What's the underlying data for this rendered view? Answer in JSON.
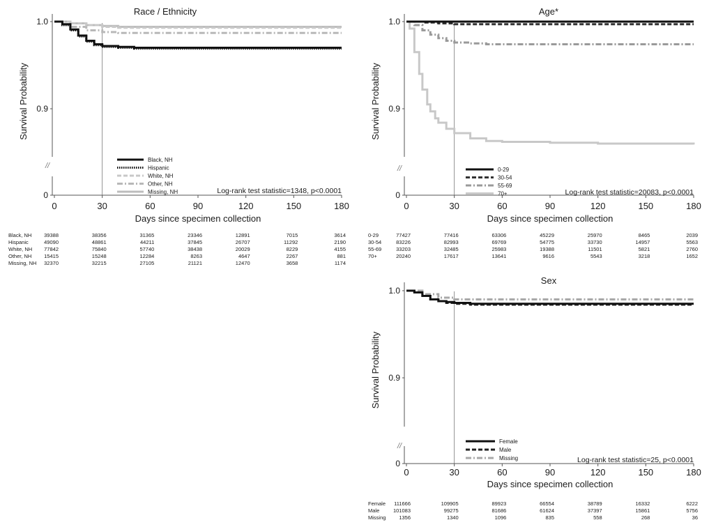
{
  "chart_data": [
    {
      "type": "line",
      "title": "Race / Ethnicity",
      "xlabel": "Days since specimen collection",
      "ylabel": "Survival Probability",
      "xlim": [
        0,
        180
      ],
      "x_ticks": [
        "0",
        "30",
        "60",
        "90",
        "120",
        "150",
        "180"
      ],
      "y_tick_labels": [
        "0",
        "0.9",
        "1.0"
      ],
      "axis_break": "//",
      "reference_line_x": 30,
      "stat_text": "Log-rank test statistic=1348, p<0.0001",
      "series": [
        {
          "name": "Black, NH",
          "style": "solid",
          "color": "#111111",
          "x": [
            0,
            5,
            10,
            15,
            20,
            25,
            30,
            40,
            50,
            60,
            90,
            120,
            150,
            180
          ],
          "values": [
            1.0,
            0.997,
            0.991,
            0.984,
            0.978,
            0.974,
            0.972,
            0.971,
            0.97,
            0.97,
            0.97,
            0.97,
            0.97,
            0.97
          ],
          "risk": [
            "39388",
            "38356",
            "31365",
            "23346",
            "12891",
            "7015",
            "3614"
          ]
        },
        {
          "name": "Hispanic",
          "style": "dotted",
          "color": "#111111",
          "x": [
            0,
            5,
            10,
            15,
            20,
            25,
            30,
            40,
            50,
            60,
            90,
            120,
            150,
            180
          ],
          "values": [
            1.0,
            0.996,
            0.99,
            0.983,
            0.977,
            0.973,
            0.971,
            0.97,
            0.969,
            0.969,
            0.969,
            0.969,
            0.969,
            0.969
          ],
          "risk": [
            "49090",
            "48861",
            "44211",
            "37845",
            "26707",
            "11292",
            "2190"
          ]
        },
        {
          "name": "White, NH",
          "style": "dashed",
          "color": "#c8c8c8",
          "x": [
            0,
            10,
            20,
            30,
            40,
            60,
            90,
            120,
            150,
            180
          ],
          "values": [
            1.0,
            0.998,
            0.996,
            0.994,
            0.993,
            0.993,
            0.993,
            0.993,
            0.993,
            0.993
          ],
          "risk": [
            "77842",
            "75840",
            "57740",
            "38438",
            "20029",
            "8229",
            "4155"
          ]
        },
        {
          "name": "Other, NH",
          "style": "dashdot",
          "color": "#b8b8b8",
          "x": [
            0,
            10,
            20,
            30,
            40,
            60,
            90,
            120,
            150,
            180
          ],
          "values": [
            1.0,
            0.994,
            0.99,
            0.988,
            0.987,
            0.987,
            0.987,
            0.987,
            0.987,
            0.987
          ],
          "risk": [
            "15415",
            "15248",
            "12284",
            "8263",
            "4647",
            "2267",
            "881"
          ]
        },
        {
          "name": "Missing, NH",
          "style": "solid",
          "color": "#bdbdbd",
          "x": [
            0,
            10,
            20,
            30,
            40,
            60,
            90,
            120,
            150,
            180
          ],
          "values": [
            1.0,
            0.998,
            0.996,
            0.995,
            0.994,
            0.994,
            0.994,
            0.994,
            0.994,
            0.994
          ],
          "risk": [
            "32370",
            "32215",
            "27105",
            "21121",
            "12470",
            "3658",
            "1174"
          ]
        }
      ]
    },
    {
      "type": "line",
      "title": "Age*",
      "xlabel": "Days since specimen collection",
      "ylabel": "Survival Probability",
      "xlim": [
        0,
        180
      ],
      "x_ticks": [
        "0",
        "30",
        "60",
        "90",
        "120",
        "150",
        "180"
      ],
      "y_tick_labels": [
        "0",
        "0.9",
        "1.0"
      ],
      "axis_break": "//",
      "reference_line_x": 30,
      "stat_text": "Log-rank test statistic=20083, p<0.0001",
      "series": [
        {
          "name": "0-29",
          "style": "solid",
          "color": "#111111",
          "x": [
            0,
            180
          ],
          "values": [
            1.0,
            1.0
          ],
          "risk": [
            "77427",
            "77416",
            "63306",
            "45229",
            "25970",
            "8465",
            "2039"
          ]
        },
        {
          "name": "30-54",
          "style": "dashed",
          "color": "#333333",
          "x": [
            0,
            10,
            20,
            30,
            60,
            90,
            120,
            150,
            180
          ],
          "values": [
            1.0,
            0.999,
            0.998,
            0.997,
            0.997,
            0.997,
            0.997,
            0.997,
            0.997
          ],
          "risk": [
            "83226",
            "82993",
            "69769",
            "54775",
            "33730",
            "14957",
            "5563"
          ]
        },
        {
          "name": "55-69",
          "style": "dashdot",
          "color": "#9a9a9a",
          "x": [
            0,
            5,
            10,
            15,
            20,
            25,
            30,
            40,
            50,
            60,
            90,
            120,
            150,
            180
          ],
          "values": [
            1.0,
            0.996,
            0.99,
            0.985,
            0.981,
            0.978,
            0.976,
            0.975,
            0.974,
            0.974,
            0.974,
            0.974,
            0.974,
            0.974
          ],
          "risk": [
            "33203",
            "32485",
            "25983",
            "19388",
            "11501",
            "5821",
            "2760"
          ]
        },
        {
          "name": "70+",
          "style": "solid",
          "color": "#c8c8c8",
          "x": [
            0,
            2,
            5,
            8,
            10,
            13,
            15,
            18,
            20,
            25,
            30,
            40,
            50,
            60,
            90,
            120,
            150,
            180
          ],
          "values": [
            1.0,
            0.992,
            0.965,
            0.94,
            0.922,
            0.905,
            0.897,
            0.889,
            0.884,
            0.877,
            0.872,
            0.866,
            0.863,
            0.862,
            0.861,
            0.86,
            0.86,
            0.859
          ],
          "risk": [
            "20240",
            "17617",
            "13641",
            "9616",
            "5543",
            "3218",
            "1652"
          ]
        }
      ]
    },
    {
      "type": "line",
      "title": "Sex",
      "xlabel": "Days since specimen collection",
      "ylabel": "Survival Probability",
      "xlim": [
        0,
        180
      ],
      "x_ticks": [
        "0",
        "30",
        "60",
        "90",
        "120",
        "150",
        "180"
      ],
      "y_tick_labels": [
        "0",
        "0.9",
        "1.0"
      ],
      "axis_break": "//",
      "reference_line_x": 30,
      "stat_text": "Log-rank test statistic=25, p<0.0001",
      "series": [
        {
          "name": "Female",
          "style": "solid",
          "color": "#111111",
          "x": [
            0,
            5,
            10,
            15,
            20,
            25,
            30,
            40,
            50,
            60,
            90,
            120,
            150,
            180
          ],
          "values": [
            1.0,
            0.998,
            0.994,
            0.99,
            0.988,
            0.987,
            0.986,
            0.985,
            0.985,
            0.985,
            0.985,
            0.985,
            0.985,
            0.985
          ],
          "risk": [
            "111666",
            "109905",
            "89923",
            "66554",
            "38789",
            "16332",
            "6222"
          ]
        },
        {
          "name": "Male",
          "style": "dashed",
          "color": "#222222",
          "x": [
            0,
            5,
            10,
            15,
            20,
            25,
            30,
            40,
            50,
            60,
            90,
            120,
            150,
            180
          ],
          "values": [
            1.0,
            0.998,
            0.994,
            0.99,
            0.988,
            0.986,
            0.985,
            0.984,
            0.984,
            0.984,
            0.984,
            0.984,
            0.984,
            0.984
          ],
          "risk": [
            "101083",
            "99275",
            "81686",
            "61624",
            "37397",
            "15861",
            "5756"
          ]
        },
        {
          "name": "Missing",
          "style": "dashdot",
          "color": "#a8a8a8",
          "x": [
            0,
            10,
            20,
            30,
            60,
            90,
            120,
            150,
            180
          ],
          "values": [
            1.0,
            0.996,
            0.992,
            0.99,
            0.99,
            0.99,
            0.99,
            0.99,
            0.99
          ],
          "risk": [
            "1356",
            "1340",
            "1096",
            "835",
            "558",
            "268",
            "36"
          ]
        }
      ]
    }
  ]
}
